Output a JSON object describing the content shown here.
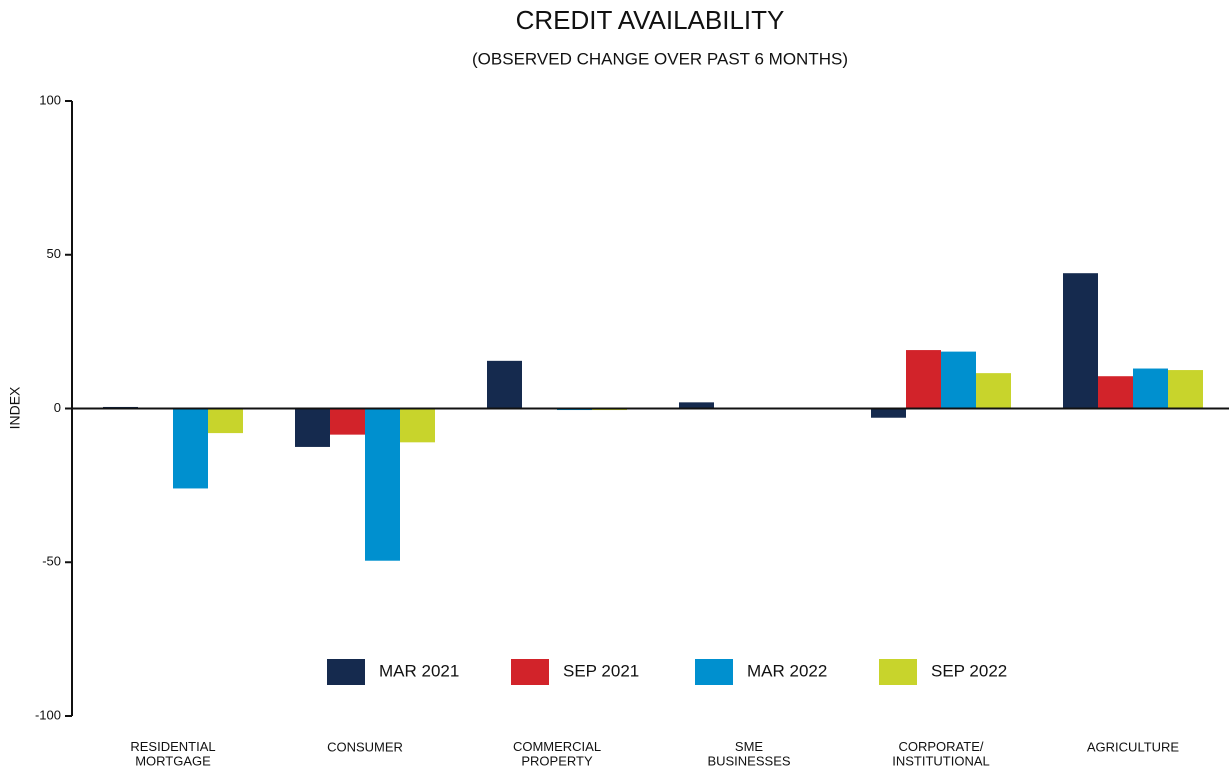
{
  "chart_data": {
    "type": "bar",
    "title": "CREDIT AVAILABILITY",
    "subtitle": "(OBSERVED CHANGE OVER PAST 6 MONTHS)",
    "y_label": "INDEX",
    "categories": [
      "RESIDENTIAL\nMORTGAGE",
      "CONSUMER",
      "COMMERCIAL\nPROPERTY",
      "SME\nBUSINESSES",
      "CORPORATE/\nINSTITUTIONAL",
      "AGRICULTURE"
    ],
    "series": [
      {
        "name": "MAR 2021",
        "color": "#152a4e",
        "values": [
          0.5,
          -12.5,
          15.5,
          2,
          -3,
          44
        ]
      },
      {
        "name": "SEP 2021",
        "color": "#d2232a",
        "values": [
          0,
          -8.5,
          0,
          0,
          19,
          10.5
        ]
      },
      {
        "name": "MAR 2022",
        "color": "#0090cf",
        "values": [
          -26,
          -49.5,
          -0.5,
          0,
          18.5,
          13
        ]
      },
      {
        "name": "SEP 2022",
        "color": "#c8d42c",
        "values": [
          -8,
          -11,
          -0.5,
          0,
          11.5,
          12.5
        ]
      }
    ],
    "ylim": [
      -100,
      100
    ],
    "yticks": [
      -100,
      -50,
      0,
      50,
      100
    ],
    "legend": "bottom"
  }
}
